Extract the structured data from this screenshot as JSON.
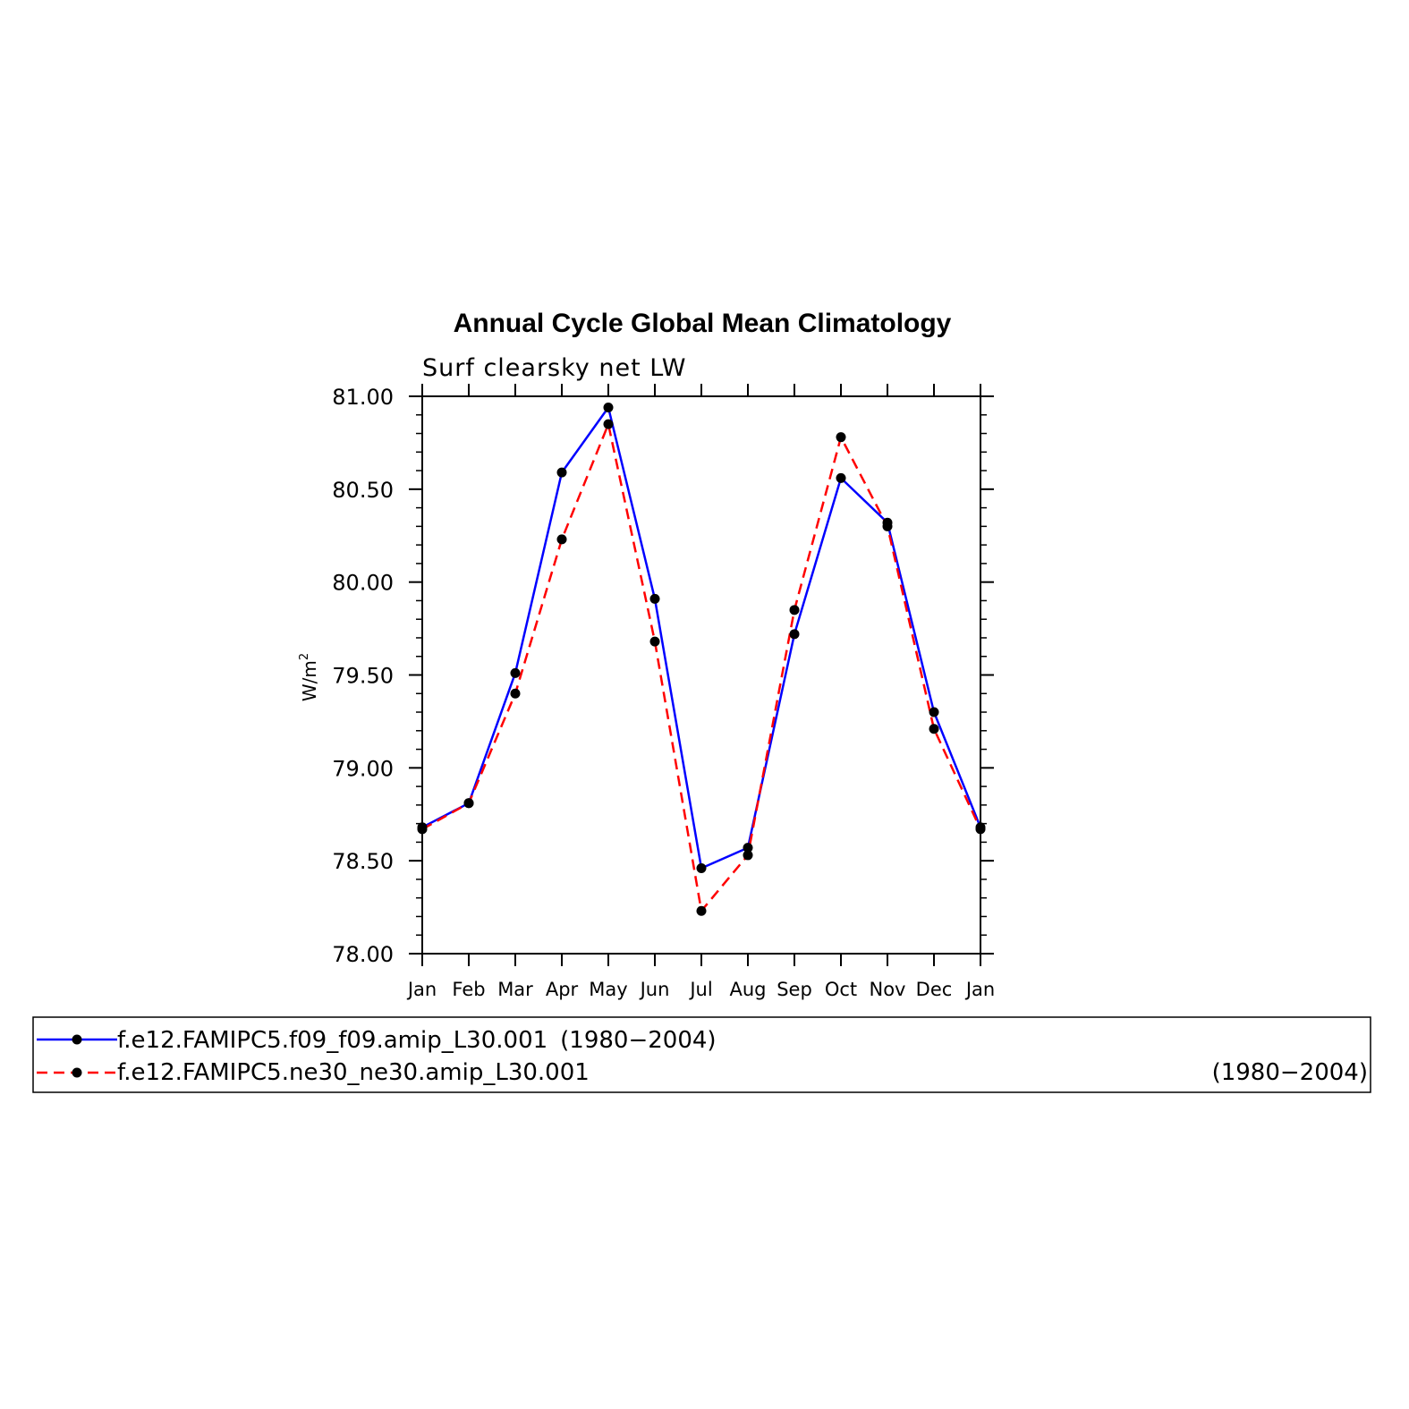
{
  "chart_data": {
    "type": "line",
    "title": "Annual Cycle Global Mean Climatology",
    "subtitle": "Surf clearsky net LW",
    "ylabel": "W/m",
    "ylabel_sup": "2",
    "ylim": [
      78.0,
      81.0
    ],
    "yticks": [
      "78.00",
      "78.50",
      "79.00",
      "79.50",
      "80.00",
      "80.50",
      "81.00"
    ],
    "categories": [
      "Jan",
      "Feb",
      "Mar",
      "Apr",
      "May",
      "Jun",
      "Jul",
      "Aug",
      "Sep",
      "Oct",
      "Nov",
      "Dec",
      "Jan"
    ],
    "series": [
      {
        "name": "f.e12.FAMIPC5.f09_f09.amip_L30.001",
        "years": "(1980−2004)",
        "color": "#0000ff",
        "dash": "solid",
        "values": [
          78.68,
          78.81,
          79.51,
          80.59,
          80.94,
          79.91,
          78.46,
          78.57,
          79.72,
          80.56,
          80.32,
          79.3,
          78.68
        ]
      },
      {
        "name": "f.e12.FAMIPC5.ne30_ne30.amip_L30.001",
        "years": "(1980−2004)",
        "color": "#ff0000",
        "dash": "dashed",
        "values": [
          78.67,
          78.81,
          79.4,
          80.23,
          80.85,
          79.68,
          78.23,
          78.53,
          79.85,
          80.78,
          80.3,
          79.21,
          78.67
        ]
      }
    ]
  }
}
